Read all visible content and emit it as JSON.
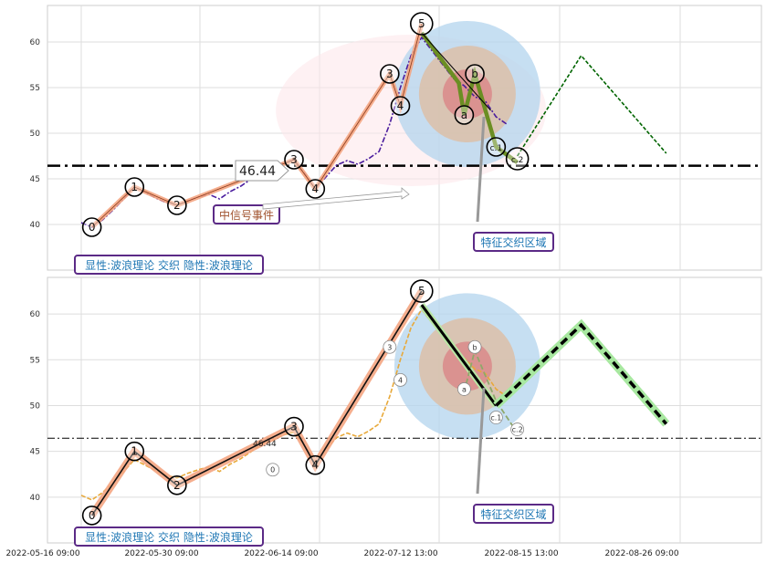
{
  "chart_data": [
    {
      "type": "line",
      "panel": "top",
      "ylim": [
        35,
        64
      ],
      "yticks": [
        40,
        45,
        50,
        55,
        60
      ],
      "grid": true,
      "hline_value": 46.44,
      "hline_label": "46.44",
      "price_series": [
        {
          "i": 0,
          "y": 40.2
        },
        {
          "i": 1,
          "y": 39.7
        },
        {
          "i": 2,
          "y": 40.5
        },
        {
          "i": 3,
          "y": 41.6
        },
        {
          "i": 4,
          "y": 42.8
        },
        {
          "i": 5,
          "y": 44.1
        },
        {
          "i": 6,
          "y": 43.5
        },
        {
          "i": 7,
          "y": 42.9
        },
        {
          "i": 8,
          "y": 42.4
        },
        {
          "i": 9,
          "y": 42.1
        },
        {
          "i": 10,
          "y": 42.6
        },
        {
          "i": 11,
          "y": 43.0
        },
        {
          "i": 12,
          "y": 43.3
        },
        {
          "i": 13,
          "y": 42.8
        },
        {
          "i": 14,
          "y": 43.6
        },
        {
          "i": 15,
          "y": 44.2
        },
        {
          "i": 16,
          "y": 45.0
        },
        {
          "i": 17,
          "y": 45.8
        },
        {
          "i": 18,
          "y": 46.2
        },
        {
          "i": 19,
          "y": 46.8
        },
        {
          "i": 20,
          "y": 47.1
        },
        {
          "i": 21,
          "y": 45.6
        },
        {
          "i": 22,
          "y": 43.9
        },
        {
          "i": 23,
          "y": 45.2
        },
        {
          "i": 24,
          "y": 46.5
        },
        {
          "i": 25,
          "y": 47.0
        },
        {
          "i": 26,
          "y": 46.6
        },
        {
          "i": 27,
          "y": 47.2
        },
        {
          "i": 28,
          "y": 48.0
        },
        {
          "i": 29,
          "y": 51.0
        },
        {
          "i": 30,
          "y": 55.0
        },
        {
          "i": 31,
          "y": 58.5
        },
        {
          "i": 32,
          "y": 60.5
        },
        {
          "i": 33,
          "y": 59.0
        },
        {
          "i": 34,
          "y": 57.5
        },
        {
          "i": 35,
          "y": 56.0
        },
        {
          "i": 36,
          "y": 55.2
        },
        {
          "i": 37,
          "y": 54.0
        },
        {
          "i": 38,
          "y": 53.5
        },
        {
          "i": 39,
          "y": 51.8
        },
        {
          "i": 40,
          "y": 51.0
        }
      ],
      "wave_points": [
        {
          "label": "0",
          "i": 1,
          "y": 39.7
        },
        {
          "label": "1",
          "i": 5,
          "y": 44.1
        },
        {
          "label": "2",
          "i": 9,
          "y": 42.1
        },
        {
          "label": "3",
          "i": 20,
          "y": 47.1
        },
        {
          "label": "4",
          "i": 22,
          "y": 43.9
        },
        {
          "label": "3",
          "i": 29,
          "y": 56.5
        },
        {
          "label": "4",
          "i": 30,
          "y": 53.0
        },
        {
          "label": "5",
          "i": 32,
          "y": 62.0
        },
        {
          "label": "a",
          "i": 36,
          "y": 52.0
        },
        {
          "label": "b",
          "i": 37,
          "y": 56.5
        },
        {
          "label": "c.1",
          "i": 39,
          "y": 48.5
        },
        {
          "label": "c.2",
          "i": 41,
          "y": 47.2
        }
      ],
      "projection": [
        {
          "i": 41,
          "y": 47.5
        },
        {
          "i": 47,
          "y": 58.5
        },
        {
          "i": 55,
          "y": 47.8
        }
      ],
      "annotations": {
        "event_label": "中信号事件",
        "zone_label": "特征交织区域",
        "legend_text": "显性:波浪理论 交织 隐性:波浪理论"
      }
    },
    {
      "type": "line",
      "panel": "bottom",
      "ylim": [
        35,
        64
      ],
      "yticks": [
        40,
        45,
        50,
        55,
        60
      ],
      "grid": true,
      "hline_value": 46.44,
      "hline_label": "46.44",
      "x_tick_labels": [
        "2022-05-16 09:00",
        "2022-05-30 09:00",
        "2022-06-14 09:00",
        "2022-07-12 13:00",
        "2022-08-15 13:00",
        "2022-08-26 09:00"
      ],
      "price_series": [
        {
          "i": 0,
          "y": 40.2
        },
        {
          "i": 1,
          "y": 39.7
        },
        {
          "i": 2,
          "y": 40.5
        },
        {
          "i": 3,
          "y": 41.6
        },
        {
          "i": 4,
          "y": 42.8
        },
        {
          "i": 5,
          "y": 44.1
        },
        {
          "i": 6,
          "y": 43.5
        },
        {
          "i": 7,
          "y": 42.9
        },
        {
          "i": 8,
          "y": 42.4
        },
        {
          "i": 9,
          "y": 42.1
        },
        {
          "i": 10,
          "y": 42.6
        },
        {
          "i": 11,
          "y": 43.0
        },
        {
          "i": 12,
          "y": 43.3
        },
        {
          "i": 13,
          "y": 42.8
        },
        {
          "i": 14,
          "y": 43.6
        },
        {
          "i": 15,
          "y": 44.2
        },
        {
          "i": 16,
          "y": 45.0
        },
        {
          "i": 17,
          "y": 45.8
        },
        {
          "i": 18,
          "y": 46.2
        },
        {
          "i": 19,
          "y": 46.8
        },
        {
          "i": 20,
          "y": 47.1
        },
        {
          "i": 21,
          "y": 45.6
        },
        {
          "i": 22,
          "y": 43.9
        },
        {
          "i": 23,
          "y": 45.2
        },
        {
          "i": 24,
          "y": 46.5
        },
        {
          "i": 25,
          "y": 47.0
        },
        {
          "i": 26,
          "y": 46.6
        },
        {
          "i": 27,
          "y": 47.2
        },
        {
          "i": 28,
          "y": 48.0
        },
        {
          "i": 29,
          "y": 51.0
        },
        {
          "i": 30,
          "y": 55.0
        },
        {
          "i": 31,
          "y": 58.5
        },
        {
          "i": 32,
          "y": 60.5
        },
        {
          "i": 33,
          "y": 59.0
        },
        {
          "i": 34,
          "y": 57.5
        },
        {
          "i": 35,
          "y": 56.0
        },
        {
          "i": 36,
          "y": 55.2
        },
        {
          "i": 37,
          "y": 54.0
        },
        {
          "i": 38,
          "y": 53.5
        },
        {
          "i": 39,
          "y": 51.8
        },
        {
          "i": 40,
          "y": 51.0
        }
      ],
      "wave_points": [
        {
          "label": "0",
          "i": 1,
          "y": 38.0
        },
        {
          "label": "1",
          "i": 5,
          "y": 45.0
        },
        {
          "label": "2",
          "i": 9,
          "y": 41.3
        },
        {
          "label": "3",
          "i": 20,
          "y": 47.7
        },
        {
          "label": "4",
          "i": 22,
          "y": 43.5
        },
        {
          "label": "5",
          "i": 32,
          "y": 62.5
        }
      ],
      "minor_points": [
        {
          "label": "0",
          "i": 18,
          "y": 43.0
        },
        {
          "label": "3",
          "i": 29,
          "y": 56.4
        },
        {
          "label": "4",
          "i": 30,
          "y": 52.8
        },
        {
          "label": "b",
          "i": 37,
          "y": 56.4
        },
        {
          "label": "a",
          "i": 36,
          "y": 51.8
        },
        {
          "label": "c.1",
          "i": 39,
          "y": 48.7
        },
        {
          "label": "c.2",
          "i": 41,
          "y": 47.4
        }
      ],
      "projection": [
        {
          "i": 39,
          "y": 50.0
        },
        {
          "i": 47,
          "y": 58.8
        },
        {
          "i": 55,
          "y": 48.0
        }
      ],
      "annotations": {
        "zone_label": "特征交织区域",
        "legend_text": "显性:波浪理论 交织 隐性:波浪理论"
      }
    }
  ]
}
